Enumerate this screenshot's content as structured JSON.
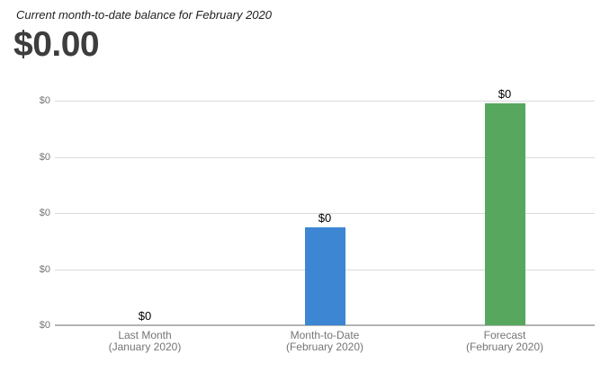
{
  "header": {
    "title": "Current month-to-date balance for February 2020",
    "amount": "$0.00"
  },
  "chart_data": {
    "type": "bar",
    "title": "Current month-to-date balance for February 2020",
    "subtitle": "$0.00",
    "categories": [
      {
        "line1": "Last Month",
        "line2": "(January 2020)"
      },
      {
        "line1": "Month-to-Date",
        "line2": "(February 2020)"
      },
      {
        "line1": "Forecast",
        "line2": "(February 2020)"
      }
    ],
    "value_labels": [
      "$0",
      "$0",
      "$0"
    ],
    "bar_fraction_of_axis": [
      0,
      0.436,
      0.988
    ],
    "bar_colors": [
      "none",
      "#3d86d4",
      "#57a85e"
    ],
    "y_axis": {
      "tick_labels": [
        "$0",
        "$0",
        "$0",
        "$0",
        "$0"
      ]
    },
    "grid": true,
    "legend": "none",
    "colors": {
      "gridline": "#dbdbdb",
      "baseline": "#b5b5b5",
      "axis_text": "#757575",
      "annotation_text": "#000000",
      "title_text": "#1f1f1f",
      "amount_text": "#3d3d3d"
    }
  }
}
